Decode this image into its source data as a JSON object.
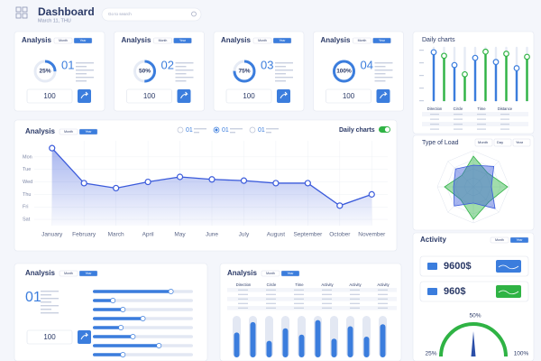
{
  "header": {
    "title": "Dashboard",
    "date": "March 11, THU",
    "search": "Go to search"
  },
  "cards": [
    {
      "title": "Analysis",
      "tabs": [
        "Month",
        "Year"
      ],
      "value": 25,
      "value_label": "25%",
      "number": "01",
      "count": "100"
    },
    {
      "title": "Analysis",
      "tabs": [
        "Month",
        "Year"
      ],
      "value": 50,
      "value_label": "50%",
      "number": "02",
      "count": "100"
    },
    {
      "title": "Analysis",
      "tabs": [
        "Month",
        "Year"
      ],
      "value": 75,
      "value_label": "75%",
      "number": "03",
      "count": "100"
    },
    {
      "title": "Analysis",
      "tabs": [
        "Month",
        "Year"
      ],
      "value": 100,
      "value_label": "100%",
      "number": "04",
      "count": "100"
    }
  ],
  "chart_data": [
    {
      "type": "line",
      "title": "Analysis",
      "tabs": [
        "Month",
        "Year"
      ],
      "legend_items": [
        "01",
        "01",
        "01"
      ],
      "toggle_label": "Daily charts",
      "categories": [
        "January",
        "February",
        "March",
        "April",
        "May",
        "June",
        "July",
        "August",
        "September",
        "October",
        "November"
      ],
      "values": [
        6.7,
        3.9,
        3.5,
        4.0,
        4.4,
        4.2,
        4.1,
        3.9,
        3.9,
        2.1,
        3.0
      ],
      "color": "#3b5bdb",
      "ylim": [
        0.5,
        7
      ],
      "yticks": [
        {
          "value": 6,
          "label": "Mon"
        },
        {
          "value": 5,
          "label": "Tue"
        },
        {
          "value": 4,
          "label": "Wed"
        },
        {
          "value": 3,
          "label": "Thu"
        },
        {
          "value": 2,
          "label": "Fri"
        },
        {
          "value": 1,
          "label": "Sat"
        }
      ],
      "grid": true
    },
    {
      "type": "bar",
      "title": "Daily charts",
      "ylim": [
        0,
        100
      ],
      "colors": [
        "#3b7ddd",
        "#2fb344"
      ],
      "values": [
        95,
        88,
        70,
        52,
        84,
        96,
        76,
        92,
        64,
        86
      ],
      "table_headers": [
        "Direction",
        "Circle",
        "Time",
        "Distance"
      ]
    },
    {
      "type": "radar",
      "title": "Type of Load",
      "filters": [
        "Month",
        "Day",
        "Year"
      ],
      "rlim": [
        0,
        100
      ],
      "series": [
        {
          "color": "#2fb344",
          "values": [
            85,
            55,
            95,
            60,
            90,
            50,
            80,
            45
          ]
        },
        {
          "color": "#3b5bdb",
          "values": [
            60,
            80,
            50,
            85,
            45,
            75,
            55,
            70
          ]
        }
      ]
    }
  ],
  "activity": {
    "title": "Activity",
    "tabs": [
      "Month",
      "Year"
    ],
    "items": [
      "9600$",
      "960$"
    ],
    "gauge": {
      "value": 50,
      "value_label": "50%",
      "min_label": "25%",
      "max_label": "100%"
    }
  },
  "bottom_left": {
    "title": "Analysis",
    "tabs": [
      "Month",
      "Year"
    ],
    "number": "01",
    "count": "100",
    "sliders": [
      78,
      20,
      30,
      50,
      28,
      40,
      66,
      30
    ]
  },
  "bottom_mid": {
    "title": "Analysis",
    "tabs": [
      "Month",
      "Year"
    ],
    "table_headers": [
      "Direction",
      "Circle",
      "Time",
      "Activity",
      "Activity",
      "Activity"
    ],
    "bars": [
      60,
      85,
      40,
      70,
      55,
      90,
      45,
      75,
      50,
      80
    ]
  }
}
